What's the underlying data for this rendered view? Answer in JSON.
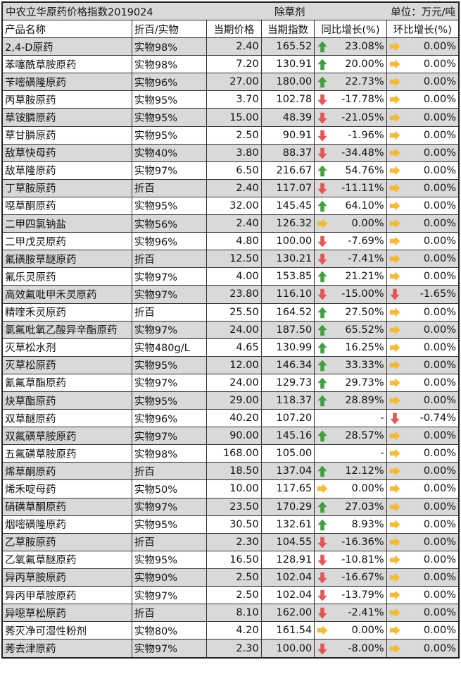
{
  "title": {
    "left": "中农立华原药价格指数2019024",
    "center": "除草剂",
    "right": "单位：万元/吨"
  },
  "headers": [
    "产品名称",
    "折百/实物",
    "当期价格",
    "当期指数",
    "同比增长(%)",
    "环比增长(%)"
  ],
  "colors": {
    "row_alt": "#d9d9d9",
    "up": "#3a9a3a",
    "down": "#e05050",
    "flat": "#f5b830"
  },
  "rows": [
    [
      "2,4-D原药",
      "实物98%",
      "2.40",
      "165.52",
      "up",
      "23.08%",
      "flat",
      "0.00%"
    ],
    [
      "苯噻酰草胺原药",
      "实物98%",
      "7.20",
      "130.91",
      "up",
      "20.00%",
      "flat",
      "0.00%"
    ],
    [
      "苄嘧磺隆原药",
      "实物96%",
      "27.00",
      "180.00",
      "up",
      "22.73%",
      "flat",
      "0.00%"
    ],
    [
      "丙草胺原药",
      "实物95%",
      "3.70",
      "102.78",
      "down",
      "-17.78%",
      "flat",
      "0.00%"
    ],
    [
      "草铵膦原药",
      "实物95%",
      "15.00",
      "48.39",
      "down",
      "-21.05%",
      "flat",
      "0.00%"
    ],
    [
      "草甘膦原药",
      "实物95%",
      "2.50",
      "90.91",
      "down",
      "-1.96%",
      "flat",
      "0.00%"
    ],
    [
      "敌草快母药",
      "实物40%",
      "3.80",
      "88.37",
      "down",
      "-34.48%",
      "flat",
      "0.00%"
    ],
    [
      "敌草隆原药",
      "实物97%",
      "6.50",
      "216.67",
      "up",
      "54.76%",
      "flat",
      "0.00%"
    ],
    [
      "丁草胺原药",
      "折百",
      "2.40",
      "117.07",
      "down",
      "-11.11%",
      "flat",
      "0.00%"
    ],
    [
      "噁草酮原药",
      "实物95%",
      "32.00",
      "145.45",
      "up",
      "64.10%",
      "flat",
      "0.00%"
    ],
    [
      "二甲四氯钠盐",
      "实物56%",
      "2.40",
      "126.32",
      "flat",
      "0.00%",
      "flat",
      "0.00%"
    ],
    [
      "二甲戊灵原药",
      "实物96%",
      "4.80",
      "100.00",
      "down",
      "-7.69%",
      "flat",
      "0.00%"
    ],
    [
      "氟磺胺草醚原药",
      "折百",
      "12.50",
      "130.21",
      "down",
      "-7.41%",
      "flat",
      "0.00%"
    ],
    [
      "氟乐灵原药",
      "实物97%",
      "4.00",
      "153.85",
      "up",
      "21.21%",
      "flat",
      "0.00%"
    ],
    [
      "高效氟吡甲禾灵原药",
      "实物97%",
      "23.80",
      "116.10",
      "down",
      "-15.00%",
      "down",
      "-1.65%"
    ],
    [
      "精喹禾灵原药",
      "折百",
      "25.50",
      "164.52",
      "up",
      "27.50%",
      "flat",
      "0.00%"
    ],
    [
      "氯氟吡氧乙酸异辛酯原药",
      "实物97%",
      "24.00",
      "187.50",
      "up",
      "65.52%",
      "flat",
      "0.00%"
    ],
    [
      "灭草松水剂",
      "实物480g/L",
      "4.65",
      "130.99",
      "up",
      "16.25%",
      "flat",
      "0.00%"
    ],
    [
      "灭草松原药",
      "实物95%",
      "12.00",
      "146.34",
      "up",
      "33.33%",
      "flat",
      "0.00%"
    ],
    [
      "氰氟草酯原药",
      "实物97%",
      "24.00",
      "129.73",
      "up",
      "29.73%",
      "flat",
      "0.00%"
    ],
    [
      "炔草酯原药",
      "实物95%",
      "29.00",
      "118.37",
      "up",
      "28.89%",
      "flat",
      "0.00%"
    ],
    [
      "双草醚原药",
      "实物96%",
      "40.20",
      "107.20",
      "",
      "-",
      "down",
      "-0.74%"
    ],
    [
      "双氟磺草胺原药",
      "实物97%",
      "90.00",
      "145.16",
      "up",
      "28.57%",
      "flat",
      "0.00%"
    ],
    [
      "五氟磺草胺原药",
      "实物98%",
      "168.00",
      "105.00",
      "",
      "-",
      "flat",
      "0.00%"
    ],
    [
      "烯草酮原药",
      "折百",
      "18.50",
      "137.04",
      "up",
      "12.12%",
      "flat",
      "0.00%"
    ],
    [
      "烯禾啶母药",
      "实物50%",
      "10.00",
      "117.65",
      "flat",
      "0.00%",
      "flat",
      "0.00%"
    ],
    [
      "硝磺草酮原药",
      "实物97%",
      "23.50",
      "170.29",
      "up",
      "27.03%",
      "flat",
      "0.00%"
    ],
    [
      "烟嘧磺隆原药",
      "实物95%",
      "30.50",
      "132.61",
      "up",
      "8.93%",
      "flat",
      "0.00%"
    ],
    [
      "乙草胺原药",
      "折百",
      "2.30",
      "104.55",
      "down",
      "-16.36%",
      "flat",
      "0.00%"
    ],
    [
      "乙氧氟草醚原药",
      "实物95%",
      "16.50",
      "128.91",
      "down",
      "-10.81%",
      "flat",
      "0.00%"
    ],
    [
      "异丙草胺原药",
      "实物90%",
      "2.50",
      "102.04",
      "down",
      "-16.67%",
      "flat",
      "0.00%"
    ],
    [
      "异丙甲草胺原药",
      "实物97%",
      "2.50",
      "102.04",
      "down",
      "-13.79%",
      "flat",
      "0.00%"
    ],
    [
      "异噁草松原药",
      "折百",
      "8.10",
      "162.00",
      "down",
      "-2.41%",
      "flat",
      "0.00%"
    ],
    [
      "莠灭净可湿性粉剂",
      "实物80%",
      "4.20",
      "161.54",
      "flat",
      "0.00%",
      "flat",
      "0.00%"
    ],
    [
      "莠去津原药",
      "实物97%",
      "2.30",
      "100.00",
      "down",
      "-8.00%",
      "flat",
      "0.00%"
    ]
  ]
}
